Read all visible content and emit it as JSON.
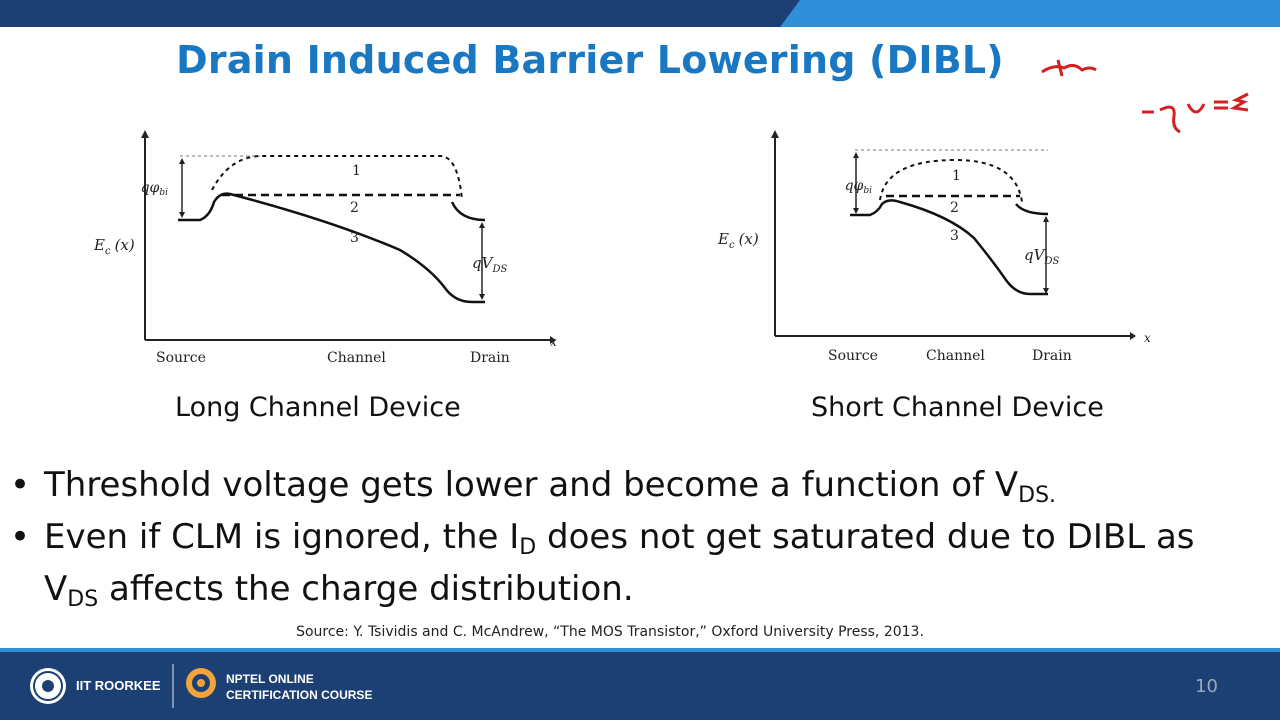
{
  "slide": {
    "title": "Drain Induced Barrier Lowering (DIBL)",
    "page_number": "10",
    "source": "Source: Y. Tsividis and C. McAndrew, “The MOS Transistor,” Oxford University Press, 2013."
  },
  "long_diagram": {
    "caption": "Long Channel Device",
    "ylabel": "E",
    "ysub": "c",
    "yarg": "(x)",
    "xaxis": "x",
    "barrier_label": "qφ",
    "barrier_sub": "bi",
    "vds_label": "qV",
    "vds_sub": "DS",
    "x_labels": [
      "Source",
      "Channel",
      "Drain"
    ],
    "curve_labels": [
      "1",
      "2",
      "3"
    ]
  },
  "short_diagram": {
    "caption": "Short Channel Device",
    "ylabel": "E",
    "ysub": "c",
    "yarg": "(x)",
    "xaxis": "x",
    "barrier_label": "qφ",
    "barrier_sub": "bi",
    "vds_label": "qV",
    "vds_sub": "DS",
    "x_labels": [
      "Source",
      "Channel",
      "Drain"
    ],
    "curve_labels": [
      "1",
      "2",
      "3"
    ]
  },
  "bullets": {
    "b1_text": "Threshold voltage gets lower and become a function of V",
    "b1_sub": "DS.",
    "b2_pre": "Even if CLM is ignored, the I",
    "b2_sub1": "D",
    "b2_mid": " does not get saturated due to DIBL as",
    "b2_line2_v": "V",
    "b2_sub2": "DS",
    "b2_post": " affects the charge distribution."
  },
  "footer": {
    "institute": "IIT ROORKEE",
    "course_line1": "NPTEL ONLINE",
    "course_line2": "CERTIFICATION COURSE"
  },
  "colors": {
    "title": "#1a78c2",
    "footer": "#1c3f74",
    "accent": "#2f8fd8",
    "ink": "#d42020"
  }
}
